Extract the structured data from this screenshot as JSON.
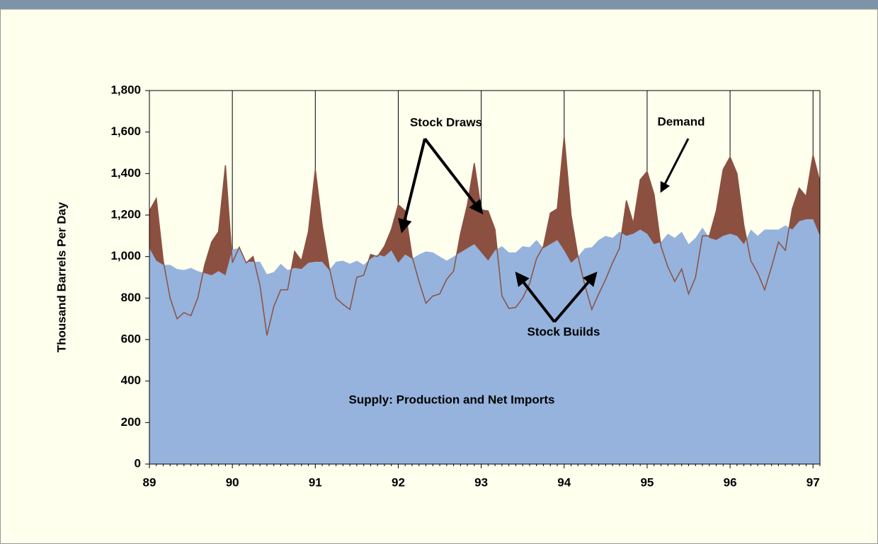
{
  "chart_data": {
    "type": "area",
    "y_label": "Thousand Barrels Per Day",
    "annotations": [
      "Stock Draws",
      "Demand",
      "Stock Builds",
      "Supply: Production and Net Imports"
    ],
    "categories": [
      "89",
      null,
      null,
      null,
      null,
      null,
      null,
      null,
      null,
      null,
      null,
      null,
      "90",
      null,
      null,
      null,
      null,
      null,
      null,
      null,
      null,
      null,
      null,
      null,
      "91",
      null,
      null,
      null,
      null,
      null,
      null,
      null,
      null,
      null,
      null,
      null,
      "92",
      null,
      null,
      null,
      null,
      null,
      null,
      null,
      null,
      null,
      null,
      null,
      "93",
      null,
      null,
      null,
      null,
      null,
      null,
      null,
      null,
      null,
      null,
      null,
      "94",
      null,
      null,
      null,
      null,
      null,
      null,
      null,
      null,
      null,
      null,
      null,
      "95",
      null,
      null,
      null,
      null,
      null,
      null,
      null,
      null,
      null,
      null,
      null,
      "96",
      null,
      null,
      null,
      null,
      null,
      null,
      null,
      null,
      null,
      null,
      null,
      "97",
      null
    ],
    "series": [
      {
        "color": "#8c5040",
        "values": [
          1220,
          1280,
          980,
          800,
          700,
          730,
          715,
          800,
          960,
          1070,
          1120,
          1440,
          970,
          1045,
          970,
          1000,
          860,
          620,
          760,
          840,
          840,
          1025,
          980,
          1120,
          1420,
          1150,
          950,
          800,
          770,
          745,
          900,
          910,
          1010,
          1000,
          1050,
          1130,
          1250,
          1220,
          1000,
          880,
          775,
          810,
          820,
          890,
          930,
          1110,
          1250,
          1450,
          1225,
          1220,
          1130,
          810,
          750,
          755,
          800,
          870,
          990,
          1050,
          1210,
          1230,
          1580,
          1200,
          1000,
          860,
          745,
          820,
          890,
          970,
          1040,
          1270,
          1160,
          1370,
          1410,
          1300,
          1050,
          950,
          880,
          940,
          820,
          900,
          1100,
          1100,
          1220,
          1420,
          1480,
          1400,
          1150,
          980,
          920,
          840,
          950,
          1070,
          1030,
          1230,
          1330,
          1290,
          1490,
          1360
        ]
      },
      {
        "color": "#95b3dd",
        "values": [
          1040,
          980,
          960,
          960,
          940,
          935,
          945,
          930,
          920,
          910,
          930,
          910,
          1035,
          1040,
          975,
          975,
          975,
          915,
          925,
          965,
          935,
          945,
          940,
          970,
          975,
          975,
          935,
          975,
          980,
          965,
          980,
          960,
          990,
          1010,
          1000,
          1030,
          970,
          1010,
          990,
          1010,
          1025,
          1020,
          1000,
          980,
          1000,
          1020,
          1040,
          1060,
          1020,
          980,
          1030,
          1050,
          1020,
          1020,
          1050,
          1045,
          1080,
          1040,
          1060,
          1080,
          1030,
          970,
          1000,
          1040,
          1045,
          1080,
          1100,
          1090,
          1120,
          1100,
          1110,
          1130,
          1110,
          1060,
          1070,
          1110,
          1090,
          1120,
          1060,
          1090,
          1140,
          1090,
          1080,
          1100,
          1110,
          1100,
          1060,
          1130,
          1100,
          1130,
          1130,
          1130,
          1150,
          1130,
          1170,
          1180,
          1180,
          1100
        ]
      }
    ],
    "ylim": [
      0,
      1800
    ],
    "yticks": [
      0,
      200,
      400,
      600,
      800,
      {
        "value": 1000,
        "label": "1,000"
      },
      {
        "value": 1200,
        "label": "1,200"
      },
      {
        "value": 1400,
        "label": "1,400"
      },
      {
        "value": 1600,
        "label": "1,600"
      },
      {
        "value": 1800,
        "label": "1,800"
      }
    ]
  }
}
